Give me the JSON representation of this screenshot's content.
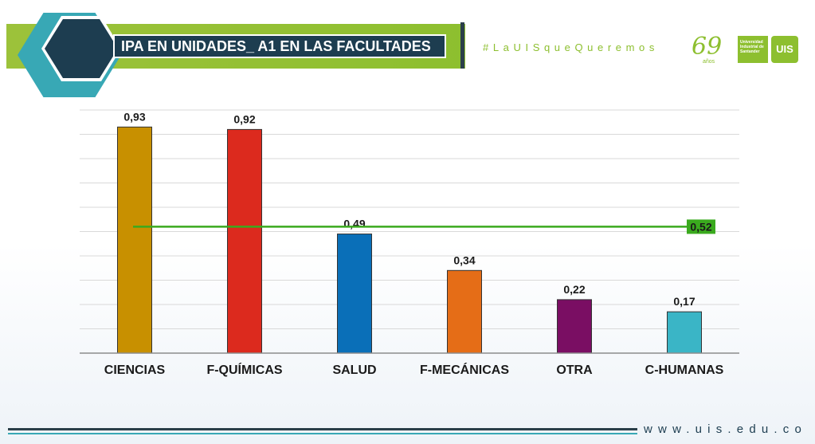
{
  "header": {
    "title": "IPA EN UNIDADES_ A1 EN LAS FACULTADES",
    "hashtag": "#LaUISqueQueremos",
    "logo_years": "69",
    "logo_years_sub": "años",
    "logo_institution": "Universidad Industrial de Santander",
    "logo_shield_text": "UIS"
  },
  "footer": {
    "url": "www.uis.edu.co"
  },
  "colors": {
    "brand_green": "#8dbf2f",
    "brand_teal": "#38a8b5",
    "brand_navy": "#1d3d50",
    "reference_line": "#3aaa1e"
  },
  "chart_data": {
    "type": "bar",
    "categories": [
      "CIENCIAS",
      "F-QUÍMICAS",
      "SALUD",
      "F-MECÁNICAS",
      "OTRA",
      "C-HUMANAS"
    ],
    "values": [
      0.93,
      0.92,
      0.49,
      0.34,
      0.22,
      0.17
    ],
    "value_labels": [
      "0,93",
      "0,92",
      "0,49",
      "0,34",
      "0,22",
      "0,17"
    ],
    "bar_colors": [
      "#c89000",
      "#dc2a1e",
      "#0a6fb8",
      "#e56d17",
      "#7a0e63",
      "#3ab5c6"
    ],
    "reference_line": {
      "value": 0.52,
      "label": "0,52"
    },
    "ylim": [
      0,
      1
    ],
    "grid": true,
    "legend": "none"
  }
}
